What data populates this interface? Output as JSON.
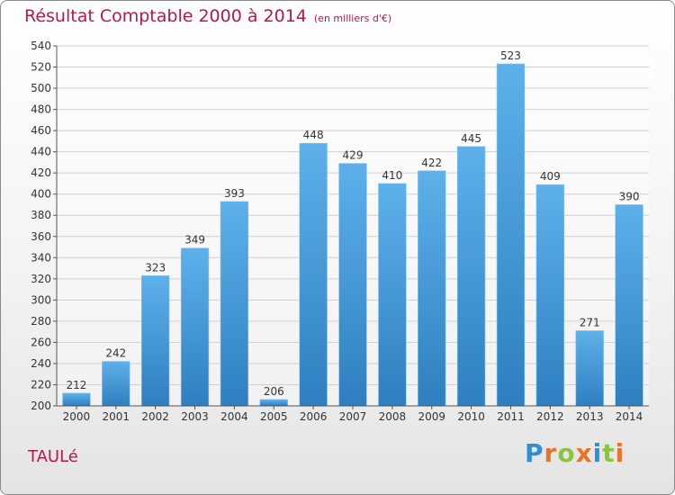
{
  "title": "Résultat Comptable 2000 à 2014",
  "subtitle": "(en milliers d'€)",
  "town": "TAULé",
  "logo": {
    "letters": [
      {
        "ch": "P",
        "color": "#2f8fd2"
      },
      {
        "ch": "r",
        "color": "#e8742a"
      },
      {
        "ch": "o",
        "color": "#8cc43f"
      },
      {
        "ch": "x",
        "color": "#e8742a"
      },
      {
        "ch": "i",
        "color": "#2f8fd2"
      },
      {
        "ch": "t",
        "color": "#8cc43f"
      },
      {
        "ch": "i",
        "color": "#e8742a"
      }
    ]
  },
  "colors": {
    "title": "#b5174f",
    "bar_top": "#5eb0ea",
    "bar_bottom": "#2f7fc0",
    "grid": "#d0d0d0",
    "axis": "#555555"
  },
  "chart_data": {
    "type": "bar",
    "title": "Résultat Comptable 2000 à 2014",
    "subtitle": "(en milliers d'€)",
    "categories": [
      "2000",
      "2001",
      "2002",
      "2003",
      "2004",
      "2005",
      "2006",
      "2007",
      "2008",
      "2009",
      "2010",
      "2011",
      "2012",
      "2013",
      "2014"
    ],
    "values": [
      212,
      242,
      323,
      349,
      393,
      206,
      448,
      429,
      410,
      422,
      445,
      523,
      409,
      271,
      390
    ],
    "ylim": [
      200,
      540
    ],
    "yticks": [
      200,
      220,
      240,
      260,
      280,
      300,
      320,
      340,
      360,
      380,
      400,
      420,
      440,
      460,
      480,
      500,
      520,
      540
    ],
    "grid": true,
    "xlabel": "",
    "ylabel": ""
  }
}
